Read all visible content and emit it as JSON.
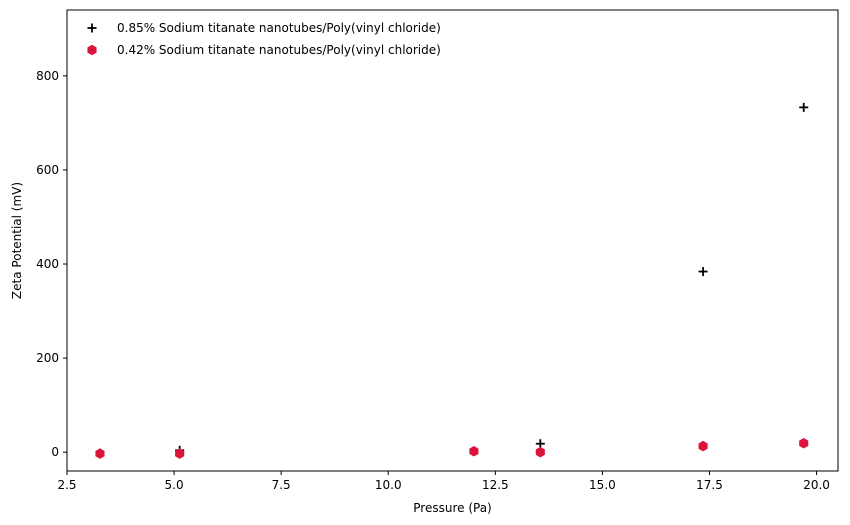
{
  "chart_data": {
    "type": "scatter",
    "xlabel": "Pressure (Pa)",
    "ylabel": "Zeta Potential (mV)",
    "xlim": [
      2.5,
      20.5
    ],
    "ylim": [
      -40,
      940
    ],
    "xticks": [
      2.5,
      5.0,
      7.5,
      10.0,
      12.5,
      15.0,
      17.5,
      20.0
    ],
    "xtick_labels": [
      "2.5",
      "5.0",
      "7.5",
      "10.0",
      "12.5",
      "15.0",
      "17.5",
      "20.0"
    ],
    "yticks": [
      0,
      200,
      400,
      600,
      800
    ],
    "ytick_labels": [
      "0",
      "200",
      "400",
      "600",
      "800"
    ],
    "grid": false,
    "legend_position": "top-left",
    "series": [
      {
        "name": "0.85% Sodium titanate nanotubes/Poly(vinyl chloride)",
        "marker": "plus",
        "color": "#000000",
        "x": [
          3.27,
          5.13,
          13.55,
          17.35,
          19.7
        ],
        "y": [
          -2,
          4,
          18,
          384,
          733
        ]
      },
      {
        "name": "0.42% Sodium titanate nanotubes/Poly(vinyl chloride)",
        "marker": "hexagon",
        "color": "#dc143c",
        "x": [
          3.27,
          5.13,
          12.0,
          13.55,
          17.35,
          19.7
        ],
        "y": [
          -3,
          -3,
          2,
          0,
          13,
          19
        ]
      }
    ]
  }
}
